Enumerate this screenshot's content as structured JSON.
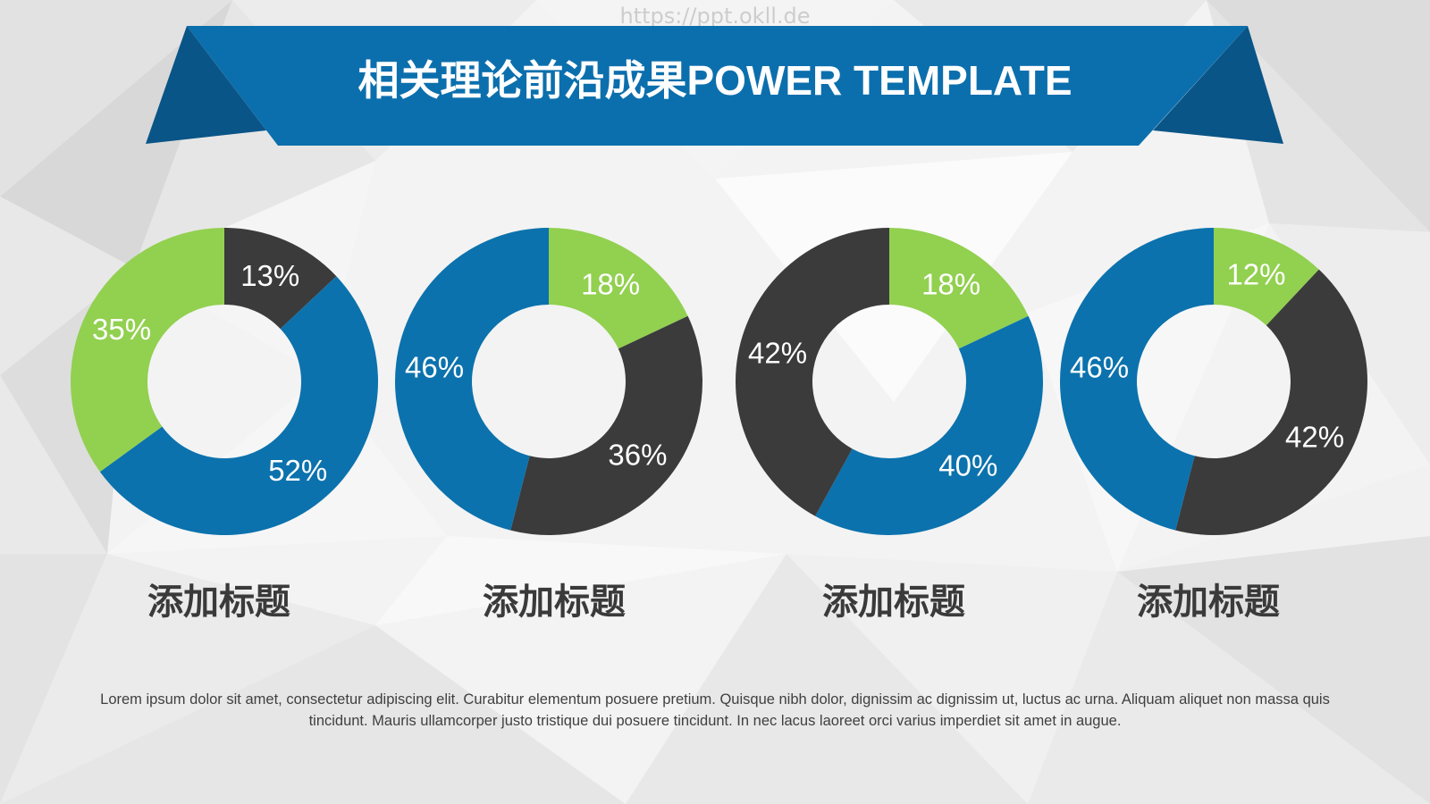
{
  "watermark": "https://ppt.okll.de",
  "banner": {
    "title": "相关理论前沿成果POWER TEMPLATE"
  },
  "colors": {
    "banner": "#0c6fad",
    "banner_fold": "#0a5587",
    "slice_label": "#ffffff",
    "caption": "#3a3a3a"
  },
  "chart_data": [
    {
      "type": "pie",
      "variant": "donut",
      "caption": "添加标题",
      "slices": [
        {
          "label": "13%",
          "value": 13,
          "color": "#3b3b3b"
        },
        {
          "label": "52%",
          "value": 52,
          "color": "#0b72ad"
        },
        {
          "label": "35%",
          "value": 35,
          "color": "#92d050"
        }
      ]
    },
    {
      "type": "pie",
      "variant": "donut",
      "caption": "添加标题",
      "slices": [
        {
          "label": "18%",
          "value": 18,
          "color": "#92d050"
        },
        {
          "label": "36%",
          "value": 36,
          "color": "#3b3b3b"
        },
        {
          "label": "46%",
          "value": 46,
          "color": "#0b72ad"
        }
      ]
    },
    {
      "type": "pie",
      "variant": "donut",
      "caption": "添加标题",
      "slices": [
        {
          "label": "18%",
          "value": 18,
          "color": "#92d050"
        },
        {
          "label": "40%",
          "value": 40,
          "color": "#0b72ad"
        },
        {
          "label": "42%",
          "value": 42,
          "color": "#3b3b3b"
        }
      ]
    },
    {
      "type": "pie",
      "variant": "donut",
      "caption": "添加标题",
      "slices": [
        {
          "label": "12%",
          "value": 12,
          "color": "#92d050"
        },
        {
          "label": "42%",
          "value": 42,
          "color": "#3b3b3b"
        },
        {
          "label": "46%",
          "value": 46,
          "color": "#0b72ad"
        }
      ]
    }
  ],
  "body_text": "Lorem ipsum dolor sit amet, consectetur adipiscing elit. Curabitur elementum posuere pretium. Quisque nibh dolor, dignissim ac dignissim ut, luctus ac urna. Aliquam aliquet non massa quis tincidunt. Mauris ullamcorper justo tristique dui posuere tincidunt. In nec lacus laoreet orci varius imperdiet sit amet in augue."
}
